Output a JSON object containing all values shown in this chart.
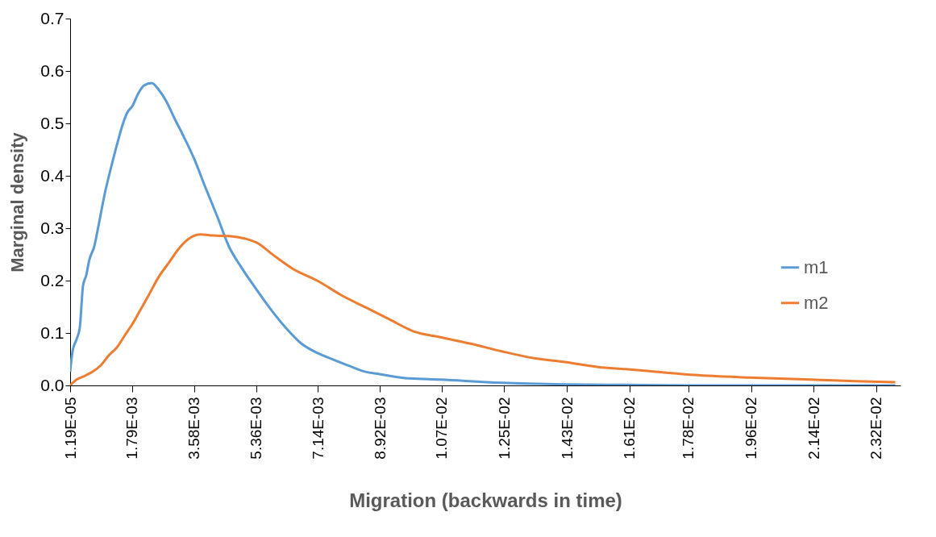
{
  "chart_data": {
    "type": "line",
    "xlabel": "Migration (backwards in time)",
    "ylabel": "Marginal density",
    "xlim": [
      1.19e-05,
      0.0239
    ],
    "xticks": [
      {
        "value": 1.19e-05,
        "label": "1.19E-05"
      },
      {
        "value": 0.00179,
        "label": "1.79E-03"
      },
      {
        "value": 0.00358,
        "label": "3.58E-03"
      },
      {
        "value": 0.00536,
        "label": "5.36E-03"
      },
      {
        "value": 0.00714,
        "label": "7.14E-03"
      },
      {
        "value": 0.00892,
        "label": "8.92E-03"
      },
      {
        "value": 0.0107,
        "label": "1.07E-02"
      },
      {
        "value": 0.0125,
        "label": "1.25E-02"
      },
      {
        "value": 0.0143,
        "label": "1.43E-02"
      },
      {
        "value": 0.0161,
        "label": "1.61E-02"
      },
      {
        "value": 0.0178,
        "label": "1.78E-02"
      },
      {
        "value": 0.0196,
        "label": "1.96E-02"
      },
      {
        "value": 0.0214,
        "label": "2.14E-02"
      },
      {
        "value": 0.0232,
        "label": "2.32E-02"
      }
    ],
    "ylim": [
      0,
      0.7
    ],
    "yticks": [
      {
        "value": 0,
        "label": "0.0"
      },
      0.1,
      0.2,
      0.3,
      0.4,
      0.5,
      0.6,
      0.7
    ],
    "grid": false,
    "legend": "right",
    "marker": "none",
    "line_style": "solid",
    "series": [
      {
        "name": "m1",
        "color": "#5b9bd5",
        "x": [
          1.19e-05,
          8.12e-05,
          0.000197,
          0.000289,
          0.000382,
          0.000474,
          0.000566,
          0.000705,
          0.000843,
          0.001005,
          0.001167,
          0.00135,
          0.00151,
          0.00165,
          0.00181,
          0.00197,
          0.00213,
          0.00236,
          0.00255,
          0.00278,
          0.00301,
          0.00324,
          0.00357,
          0.00389,
          0.00424,
          0.00458,
          0.00493,
          0.00532,
          0.00574,
          0.0062,
          0.00666,
          0.00712,
          0.00759,
          0.00805,
          0.00851,
          0.00888,
          0.00966,
          0.01066,
          0.01243,
          0.01421,
          0.01599,
          0.01797,
          0.02375
        ],
        "values": [
          0.026,
          0.065,
          0.088,
          0.11,
          0.19,
          0.21,
          0.24,
          0.265,
          0.31,
          0.365,
          0.41,
          0.457,
          0.495,
          0.52,
          0.534,
          0.557,
          0.572,
          0.577,
          0.565,
          0.542,
          0.51,
          0.48,
          0.434,
          0.38,
          0.323,
          0.265,
          0.226,
          0.188,
          0.149,
          0.111,
          0.08,
          0.062,
          0.049,
          0.037,
          0.026,
          0.022,
          0.014,
          0.011,
          0.005,
          0.002,
          0.001,
          0,
          0
        ]
      },
      {
        "name": "m2",
        "color": "#ed7d31",
        "x": [
          1.19e-05,
          0.000197,
          0.000427,
          0.000658,
          0.000889,
          0.00112,
          0.00135,
          0.00158,
          0.00181,
          0.00204,
          0.00227,
          0.00255,
          0.00285,
          0.00315,
          0.00343,
          0.00377,
          0.00412,
          0.00458,
          0.00505,
          0.00539,
          0.00585,
          0.00643,
          0.00712,
          0.00782,
          0.00851,
          0.0092,
          0.0099,
          0.01066,
          0.01151,
          0.01243,
          0.01336,
          0.01421,
          0.0152,
          0.01599,
          0.01705,
          0.01797,
          0.01955,
          0.02133,
          0.0226,
          0.02375
        ],
        "values": [
          0,
          0.011,
          0.018,
          0.026,
          0.038,
          0.057,
          0.072,
          0.095,
          0.118,
          0.145,
          0.172,
          0.206,
          0.234,
          0.262,
          0.28,
          0.288,
          0.286,
          0.285,
          0.28,
          0.272,
          0.249,
          0.222,
          0.2,
          0.172,
          0.149,
          0.126,
          0.103,
          0.092,
          0.08,
          0.065,
          0.052,
          0.045,
          0.035,
          0.031,
          0.025,
          0.02,
          0.015,
          0.011,
          0.008,
          0.006
        ]
      }
    ]
  }
}
